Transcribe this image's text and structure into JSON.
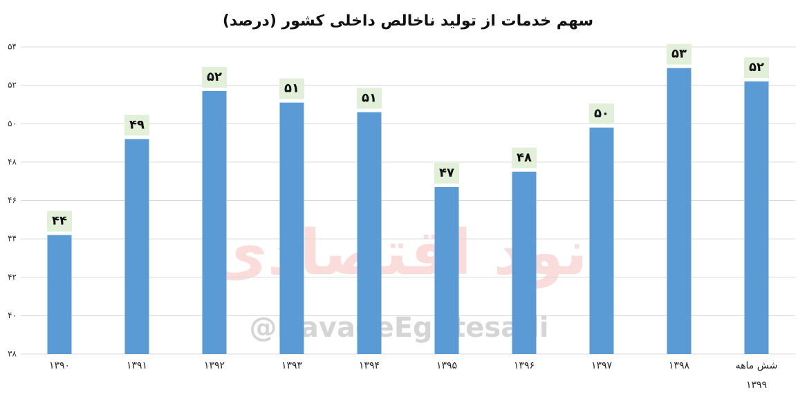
{
  "chart_data": {
    "type": "bar",
    "title": "سهم خدمات از تولید ناخالص داخلی کشور (درصد)",
    "categories": [
      "۱۳۹۰",
      "۱۳۹۱",
      "۱۳۹۲",
      "۱۳۹۳",
      "۱۳۹۴",
      "۱۳۹۵",
      "۱۳۹۶",
      "۱۳۹۷",
      "۱۳۹۸",
      "شش ماهه ۱۳۹۹"
    ],
    "values": [
      44.2,
      49.2,
      51.7,
      51.1,
      50.6,
      46.7,
      47.5,
      49.8,
      52.9,
      52.2
    ],
    "value_labels": [
      "۴۴",
      "۴۹",
      "۵۲",
      "۵۱",
      "۵۱",
      "۴۷",
      "۴۸",
      "۵۰",
      "۵۳",
      "۵۲"
    ],
    "color": "#5b9bd5",
    "label_background": "#e2efd9",
    "ylim": [
      38,
      54
    ],
    "yticks": [
      {
        "value": 38,
        "label": "۳۸"
      },
      {
        "value": 40,
        "label": "۴۰"
      },
      {
        "value": 42,
        "label": "۴۲"
      },
      {
        "value": 44,
        "label": "۴۴"
      },
      {
        "value": 46,
        "label": "۴۶"
      },
      {
        "value": 48,
        "label": "۴۸"
      },
      {
        "value": 50,
        "label": "۵۰"
      },
      {
        "value": 52,
        "label": "۵۲"
      },
      {
        "value": 54,
        "label": "۵۴"
      }
    ],
    "grid": true,
    "watermark_logo": "نود اقتصادی",
    "watermark": "@NavadeEghtesadi"
  }
}
